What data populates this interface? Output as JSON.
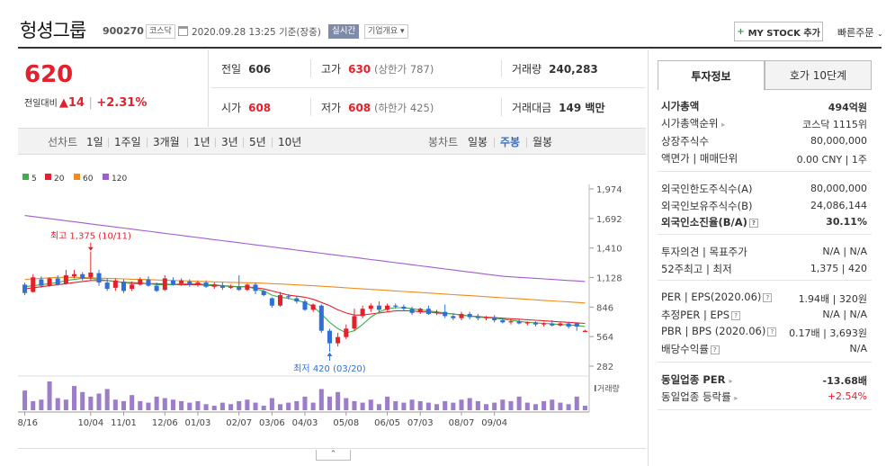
{
  "header": {
    "stock_name": "헝셩그룹",
    "stock_code": "900270",
    "market_badge": "코스닥",
    "calendar_icon": "calendar-icon",
    "datetime": "2020.09.28 13:25 기준(장중)",
    "realtime_badge": "실시간",
    "company_overview": "기업개요 ▾",
    "mystock_plus": "+",
    "mystock_label": "MY STOCK 추가",
    "quick_order": "빠른주문",
    "quick_order_chevron": "⌄"
  },
  "price": {
    "current": "620",
    "change_label": "전일대비",
    "change_symbol": "▲",
    "change_amount": "14",
    "change_rate": "+2.31%"
  },
  "quote": {
    "prev_close_label": "전일",
    "prev_close": "606",
    "high_label": "고가",
    "high": "630",
    "high_limit": "(상한가 787)",
    "volume_label": "거래량",
    "volume": "240,283",
    "open_label": "시가",
    "open": "608",
    "low_label": "저가",
    "low": "608",
    "low_limit": "(하한가 425)",
    "amount_label": "거래대금",
    "amount": "149 백만"
  },
  "period_bar": {
    "line_label": "선차트",
    "line_options": [
      "1일",
      "1주일",
      "3개월",
      "1년",
      "3년",
      "5년",
      "10년"
    ],
    "candle_label": "봉차트",
    "candle_options": [
      "일봉",
      "주봉",
      "월봉"
    ],
    "active_candle": "주봉"
  },
  "chart_data": {
    "type": "candlestick",
    "title": "",
    "legend": [
      {
        "name": "5",
        "color": "#3cb043"
      },
      {
        "name": "20",
        "color": "#e4202d"
      },
      {
        "name": "60",
        "color": "#f08c1e"
      },
      {
        "name": "120",
        "color": "#a35bd0"
      }
    ],
    "legend_placement": "top-left",
    "y_ticks": [
      "1,974",
      "1,692",
      "1,410",
      "1,128",
      "846",
      "564",
      "282"
    ],
    "ylim": [
      282,
      1974
    ],
    "x_ticks": [
      "08/16",
      "10/04",
      "11/01",
      "12/06",
      "01/03",
      "02/07",
      "03/06",
      "04/03",
      "05/08",
      "06/05",
      "07/03",
      "08/07",
      "09/04"
    ],
    "annotation_high": "최고 1,375 (10/11)",
    "annotation_low": "최저 420 (03/20)",
    "volume_label": "거래량",
    "up_color": "#e4202d",
    "down_color": "#2f6fd6",
    "candles": [
      {
        "o": 1060,
        "c": 980,
        "h": 1080,
        "l": 960
      },
      {
        "o": 990,
        "c": 1130,
        "h": 1160,
        "l": 985
      },
      {
        "o": 1110,
        "c": 1050,
        "h": 1140,
        "l": 1030
      },
      {
        "o": 1050,
        "c": 1120,
        "h": 1130,
        "l": 1040
      },
      {
        "o": 1120,
        "c": 1060,
        "h": 1150,
        "l": 1050
      },
      {
        "o": 1070,
        "c": 1150,
        "h": 1200,
        "l": 1060
      },
      {
        "o": 1140,
        "c": 1160,
        "h": 1200,
        "l": 1120
      },
      {
        "o": 1160,
        "c": 1120,
        "h": 1180,
        "l": 1100
      },
      {
        "o": 1130,
        "c": 1175,
        "h": 1375,
        "l": 1100
      },
      {
        "o": 1170,
        "c": 1080,
        "h": 1200,
        "l": 1050
      },
      {
        "o": 1080,
        "c": 1020,
        "h": 1120,
        "l": 1000
      },
      {
        "o": 1030,
        "c": 1100,
        "h": 1120,
        "l": 1000
      },
      {
        "o": 1090,
        "c": 1000,
        "h": 1110,
        "l": 980
      },
      {
        "o": 1020,
        "c": 1060,
        "h": 1090,
        "l": 1000
      },
      {
        "o": 1060,
        "c": 1110,
        "h": 1130,
        "l": 1050
      },
      {
        "o": 1110,
        "c": 1050,
        "h": 1140,
        "l": 1040
      },
      {
        "o": 1050,
        "c": 1000,
        "h": 1080,
        "l": 990
      },
      {
        "o": 1010,
        "c": 1120,
        "h": 1150,
        "l": 1000
      },
      {
        "o": 1100,
        "c": 1060,
        "h": 1130,
        "l": 1050
      },
      {
        "o": 1070,
        "c": 1100,
        "h": 1120,
        "l": 1050
      },
      {
        "o": 1090,
        "c": 1060,
        "h": 1110,
        "l": 1040
      },
      {
        "o": 1060,
        "c": 1080,
        "h": 1100,
        "l": 1040
      },
      {
        "o": 1080,
        "c": 1040,
        "h": 1100,
        "l": 1030
      },
      {
        "o": 1040,
        "c": 1060,
        "h": 1080,
        "l": 1020
      },
      {
        "o": 1050,
        "c": 1030,
        "h": 1080,
        "l": 1010
      },
      {
        "o": 1030,
        "c": 1040,
        "h": 1060,
        "l": 1020
      },
      {
        "o": 1040,
        "c": 1010,
        "h": 1150,
        "l": 1000
      },
      {
        "o": 1010,
        "c": 1060,
        "h": 1070,
        "l": 1000
      },
      {
        "o": 1060,
        "c": 1000,
        "h": 1080,
        "l": 970
      },
      {
        "o": 1000,
        "c": 960,
        "h": 1010,
        "l": 950
      },
      {
        "o": 930,
        "c": 860,
        "h": 940,
        "l": 840
      },
      {
        "o": 860,
        "c": 960,
        "h": 990,
        "l": 850
      },
      {
        "o": 950,
        "c": 940,
        "h": 970,
        "l": 920
      },
      {
        "o": 930,
        "c": 900,
        "h": 950,
        "l": 880
      },
      {
        "o": 900,
        "c": 820,
        "h": 920,
        "l": 810
      },
      {
        "o": 820,
        "c": 870,
        "h": 880,
        "l": 800
      },
      {
        "o": 860,
        "c": 620,
        "h": 870,
        "l": 600
      },
      {
        "o": 620,
        "c": 500,
        "h": 640,
        "l": 420
      },
      {
        "o": 500,
        "c": 560,
        "h": 600,
        "l": 470
      },
      {
        "o": 560,
        "c": 640,
        "h": 680,
        "l": 540
      },
      {
        "o": 640,
        "c": 760,
        "h": 830,
        "l": 620
      },
      {
        "o": 760,
        "c": 830,
        "h": 860,
        "l": 740
      },
      {
        "o": 830,
        "c": 860,
        "h": 880,
        "l": 800
      },
      {
        "o": 860,
        "c": 820,
        "h": 900,
        "l": 800
      },
      {
        "o": 820,
        "c": 860,
        "h": 880,
        "l": 810
      },
      {
        "o": 860,
        "c": 850,
        "h": 880,
        "l": 830
      },
      {
        "o": 850,
        "c": 830,
        "h": 870,
        "l": 810
      },
      {
        "o": 830,
        "c": 790,
        "h": 850,
        "l": 770
      },
      {
        "o": 800,
        "c": 830,
        "h": 840,
        "l": 780
      },
      {
        "o": 830,
        "c": 780,
        "h": 860,
        "l": 770
      },
      {
        "o": 790,
        "c": 800,
        "h": 820,
        "l": 770
      },
      {
        "o": 800,
        "c": 760,
        "h": 870,
        "l": 740
      },
      {
        "o": 760,
        "c": 740,
        "h": 790,
        "l": 720
      },
      {
        "o": 740,
        "c": 780,
        "h": 800,
        "l": 720
      },
      {
        "o": 780,
        "c": 750,
        "h": 800,
        "l": 730
      },
      {
        "o": 760,
        "c": 740,
        "h": 780,
        "l": 720
      },
      {
        "o": 740,
        "c": 750,
        "h": 760,
        "l": 720
      },
      {
        "o": 750,
        "c": 720,
        "h": 770,
        "l": 700
      },
      {
        "o": 720,
        "c": 700,
        "h": 740,
        "l": 690
      },
      {
        "o": 700,
        "c": 710,
        "h": 730,
        "l": 680
      },
      {
        "o": 710,
        "c": 690,
        "h": 730,
        "l": 680
      },
      {
        "o": 690,
        "c": 700,
        "h": 710,
        "l": 670
      },
      {
        "o": 700,
        "c": 680,
        "h": 710,
        "l": 660
      },
      {
        "o": 680,
        "c": 690,
        "h": 700,
        "l": 660
      },
      {
        "o": 690,
        "c": 670,
        "h": 720,
        "l": 660
      },
      {
        "o": 670,
        "c": 690,
        "h": 700,
        "l": 660
      },
      {
        "o": 690,
        "c": 660,
        "h": 700,
        "l": 640
      },
      {
        "o": 690,
        "c": 660,
        "h": 700,
        "l": 620
      },
      {
        "o": 608,
        "c": 620,
        "h": 630,
        "l": 608
      }
    ],
    "ma5": [
      1040,
      1050,
      1060,
      1070,
      1080,
      1100,
      1110,
      1120,
      1120,
      1110,
      1100,
      1090,
      1080,
      1070,
      1070,
      1070,
      1060,
      1060,
      1060,
      1070,
      1070,
      1070,
      1060,
      1060,
      1050,
      1040,
      1040,
      1040,
      1020,
      1000,
      960,
      940,
      930,
      910,
      890,
      850,
      780,
      700,
      640,
      600,
      620,
      680,
      750,
      800,
      830,
      840,
      840,
      830,
      820,
      810,
      800,
      790,
      780,
      770,
      760,
      750,
      745,
      740,
      730,
      720,
      710,
      700,
      695,
      690,
      685,
      680,
      675,
      670,
      660
    ],
    "ma20": [
      1020,
      1030,
      1040,
      1050,
      1060,
      1070,
      1080,
      1090,
      1100,
      1100,
      1100,
      1090,
      1080,
      1080,
      1075,
      1070,
      1070,
      1065,
      1060,
      1060,
      1060,
      1060,
      1055,
      1050,
      1050,
      1045,
      1040,
      1040,
      1030,
      1020,
      1000,
      980,
      960,
      950,
      940,
      920,
      890,
      860,
      820,
      790,
      770,
      770,
      780,
      790,
      800,
      810,
      810,
      810,
      800,
      800,
      790,
      785,
      780,
      770,
      760,
      755,
      750,
      745,
      740,
      735,
      730,
      725,
      720,
      715,
      710,
      705,
      700,
      695,
      690
    ],
    "ma60": [
      1110,
      1115,
      1120,
      1125,
      1130,
      1130,
      1130,
      1128,
      1125,
      1122,
      1120,
      1118,
      1115,
      1112,
      1110,
      1108,
      1105,
      1102,
      1100,
      1098,
      1095,
      1092,
      1090,
      1087,
      1085,
      1082,
      1080,
      1078,
      1076,
      1074,
      1070,
      1066,
      1062,
      1058,
      1054,
      1050,
      1045,
      1040,
      1035,
      1030,
      1025,
      1020,
      1015,
      1010,
      1005,
      1000,
      995,
      990,
      985,
      980,
      975,
      970,
      965,
      960,
      955,
      950,
      945,
      940,
      935,
      930,
      925,
      920,
      915,
      910,
      905,
      900,
      895,
      890,
      885
    ],
    "ma120": [
      1720,
      1710,
      1700,
      1690,
      1680,
      1670,
      1660,
      1650,
      1640,
      1630,
      1620,
      1610,
      1600,
      1590,
      1580,
      1570,
      1560,
      1550,
      1540,
      1530,
      1520,
      1510,
      1500,
      1490,
      1480,
      1470,
      1460,
      1450,
      1440,
      1430,
      1420,
      1410,
      1400,
      1390,
      1380,
      1370,
      1360,
      1350,
      1340,
      1330,
      1320,
      1310,
      1300,
      1290,
      1280,
      1270,
      1260,
      1250,
      1240,
      1230,
      1220,
      1210,
      1200,
      1190,
      1180,
      1170,
      1160,
      1150,
      1140,
      1135,
      1130,
      1125,
      1120,
      1115,
      1110,
      1105,
      1100,
      1095,
      1090
    ],
    "volume": [
      65,
      30,
      35,
      95,
      40,
      35,
      80,
      60,
      45,
      55,
      70,
      35,
      30,
      50,
      30,
      25,
      45,
      40,
      35,
      30,
      25,
      30,
      20,
      15,
      25,
      20,
      30,
      35,
      25,
      15,
      40,
      20,
      25,
      30,
      45,
      25,
      70,
      45,
      60,
      40,
      30,
      25,
      35,
      20,
      45,
      30,
      25,
      35,
      30,
      25,
      20,
      30,
      25,
      35,
      40,
      30,
      20,
      25,
      35,
      30,
      45,
      25,
      20,
      30,
      35,
      25,
      20,
      45,
      15
    ]
  },
  "right_panel": {
    "tab_invest": "투자정보",
    "tab_orderbook": "호가 10단계",
    "info_icon": "info-icon",
    "arrow_icon": "chevron-right-icon",
    "rows": {
      "market_cap_label": "시가총액",
      "market_cap": "494억원",
      "cap_rank_label": "시가총액순위",
      "cap_rank": "코스닥 1115위",
      "listed_shares_label": "상장주식수",
      "listed_shares": "80,000,000",
      "face_label": "액면가 | 매매단위",
      "face": "0.00 CNY | 1주",
      "foreign_limit_label": "외국인한도주식수(A)",
      "foreign_limit": "80,000,000",
      "foreign_hold_label": "외국인보유주식수(B)",
      "foreign_hold": "24,086,144",
      "foreign_ratio_label": "외국인소진율(B/A)",
      "foreign_ratio": "30.11%",
      "opinion_label": "투자의견 | 목표주가",
      "opinion": "N/A | N/A",
      "w52_label": "52주최고 | 최저",
      "w52": "1,375 | 420",
      "per_label": "PER | EPS(2020.06)",
      "per": "1.94배 | 320원",
      "est_per_label": "추정PER | EPS",
      "est_per": "N/A | N/A",
      "pbr_label": "PBR | BPS (2020.06)",
      "pbr": "0.17배 | 3,693원",
      "div_label": "배당수익률",
      "div": "N/A",
      "ind_per_label": "동일업종 PER",
      "ind_per": "-13.68배",
      "ind_rate_label": "동일업종 등락률",
      "ind_rate": "+2.54%"
    }
  },
  "footer": {
    "toggle": "⌃"
  }
}
